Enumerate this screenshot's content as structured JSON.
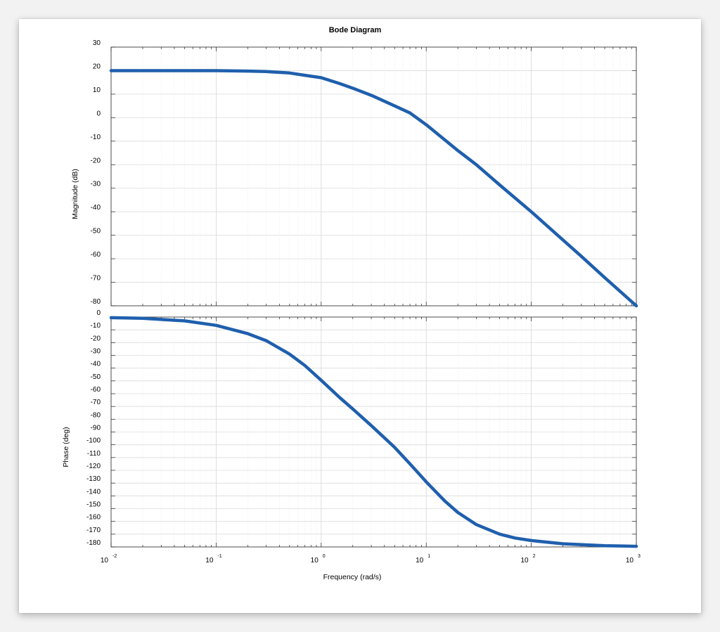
{
  "chart_data": [
    {
      "type": "line",
      "title": "Bode Diagram",
      "xlabel": "",
      "ylabel": "Magnitude (dB)",
      "x_scale": "log",
      "xlim": [
        0.01,
        1000
      ],
      "ylim": [
        -80,
        30
      ],
      "yticks": [
        30,
        20,
        10,
        0,
        -10,
        -20,
        -30,
        -40,
        -50,
        -60,
        -70,
        -80
      ],
      "grid": true,
      "color": "#1f5fad",
      "series": [
        {
          "x": [
            0.01,
            0.02,
            0.05,
            0.1,
            0.2,
            0.3,
            0.5,
            0.7,
            1,
            1.5,
            2,
            3,
            5,
            7,
            10,
            20,
            30,
            50,
            100,
            200,
            300,
            500,
            1000
          ],
          "y": [
            20,
            20,
            20,
            20,
            19.8,
            19.6,
            19,
            18,
            17,
            14.5,
            12.5,
            9.5,
            5,
            2,
            -3,
            -14,
            -20,
            -28.6,
            -40,
            -52,
            -59,
            -68,
            -80
          ]
        }
      ]
    },
    {
      "type": "line",
      "title": "",
      "xlabel": "Frequency  (rad/s)",
      "ylabel": "Phase (deg)",
      "x_scale": "log",
      "xlim": [
        0.01,
        1000
      ],
      "ylim": [
        -180,
        0
      ],
      "xticks": [
        {
          "base": "10",
          "exp": "-2"
        },
        {
          "base": "10",
          "exp": "-1"
        },
        {
          "base": "10",
          "exp": "0"
        },
        {
          "base": "10",
          "exp": "1"
        },
        {
          "base": "10",
          "exp": "2"
        },
        {
          "base": "10",
          "exp": "3"
        }
      ],
      "yticks": [
        0,
        -10,
        -20,
        -30,
        -40,
        -50,
        -60,
        -70,
        -80,
        -90,
        -100,
        -110,
        -120,
        -130,
        -140,
        -150,
        -160,
        -170,
        -180
      ],
      "grid": true,
      "color": "#1f5fad",
      "series": [
        {
          "x": [
            0.01,
            0.02,
            0.05,
            0.1,
            0.2,
            0.3,
            0.5,
            0.7,
            1,
            1.5,
            2,
            3,
            5,
            7,
            10,
            15,
            20,
            30,
            50,
            70,
            100,
            200,
            500,
            1000
          ],
          "y": [
            -0.5,
            -1,
            -3,
            -6.5,
            -13,
            -18.5,
            -29,
            -38,
            -49.5,
            -63,
            -72,
            -85,
            -102,
            -115,
            -129,
            -144,
            -153,
            -162.5,
            -170,
            -173,
            -175,
            -177.5,
            -179,
            -179.5
          ]
        }
      ]
    }
  ]
}
